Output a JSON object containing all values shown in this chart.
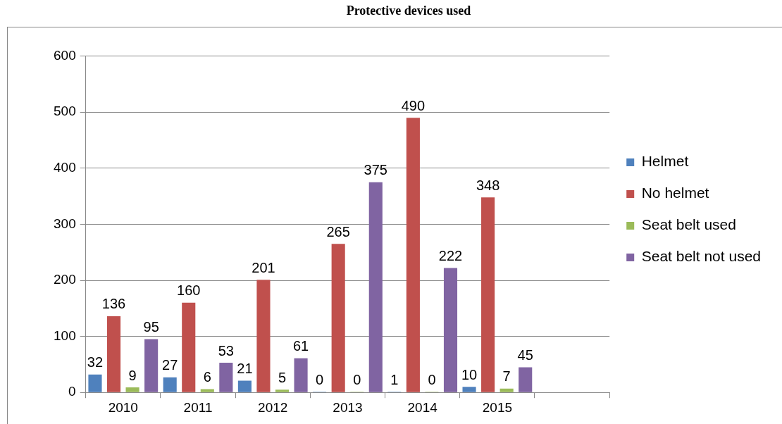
{
  "chart_data": {
    "type": "bar",
    "title": "Protective devices used",
    "categories": [
      "2010",
      "2011",
      "2012",
      "2013",
      "2014",
      "2015",
      null
    ],
    "series": [
      {
        "name": "Helmet",
        "color": "#4f81bd",
        "values": [
          32,
          27,
          21,
          0,
          1,
          10,
          null
        ]
      },
      {
        "name": "No helmet",
        "color": "#c0504d",
        "values": [
          136,
          160,
          201,
          265,
          490,
          348,
          null
        ]
      },
      {
        "name": "Seat belt used",
        "color": "#9bbb59",
        "values": [
          9,
          6,
          5,
          0,
          0,
          7,
          null
        ]
      },
      {
        "name": "Seat belt not used",
        "color": "#8064a2",
        "values": [
          95,
          53,
          61,
          375,
          222,
          45,
          null
        ]
      }
    ],
    "ylim": [
      0,
      600
    ],
    "yticks": [
      0,
      100,
      200,
      300,
      400,
      500,
      600
    ],
    "grid": "y",
    "legend": "right",
    "data_labels": true
  }
}
